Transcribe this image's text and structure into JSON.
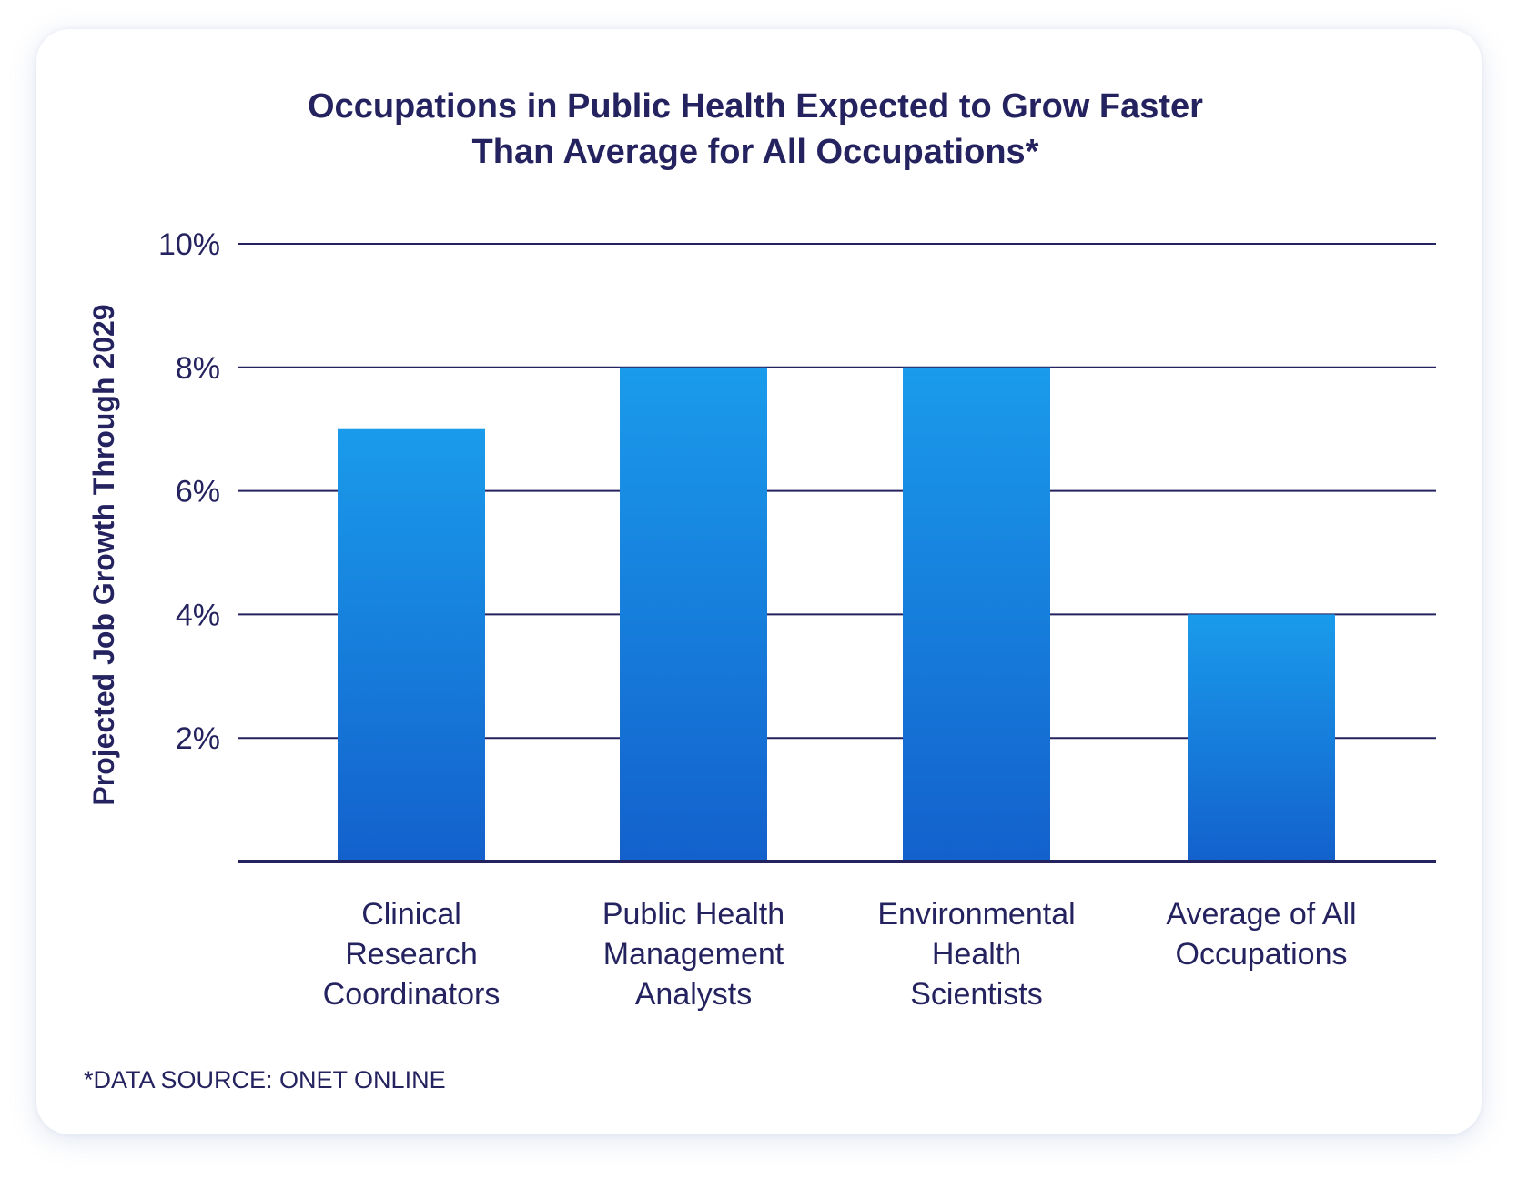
{
  "colors": {
    "text": "#25235f",
    "gridline": "#25235f",
    "bar_top": "#1a9beb",
    "bar_bottom": "#1361cc",
    "card_background": "#ffffff"
  },
  "chart_data": {
    "type": "bar",
    "title_lines": [
      "Occupations in Public Health Expected to Grow Faster",
      "Than Average for All Occupations*"
    ],
    "xlabel": "",
    "ylabel": "Projected Job Growth Through 2029",
    "categories": [
      [
        "Clinical",
        "Research",
        "Coordinators"
      ],
      [
        "Public Health",
        "Management",
        "Analysts"
      ],
      [
        "Environmental",
        "Health",
        "Scientists"
      ],
      [
        "Average of All",
        "Occupations"
      ]
    ],
    "values": [
      7,
      8,
      8,
      4
    ],
    "unit": "%",
    "ylim": [
      0,
      10
    ],
    "y_ticks": [
      2,
      4,
      6,
      8,
      10
    ],
    "y_tick_labels": [
      "2%",
      "4%",
      "6%",
      "8%",
      "10%"
    ],
    "grid": true,
    "legend": "none"
  },
  "footnote": "*DATA SOURCE: ONET ONLINE"
}
